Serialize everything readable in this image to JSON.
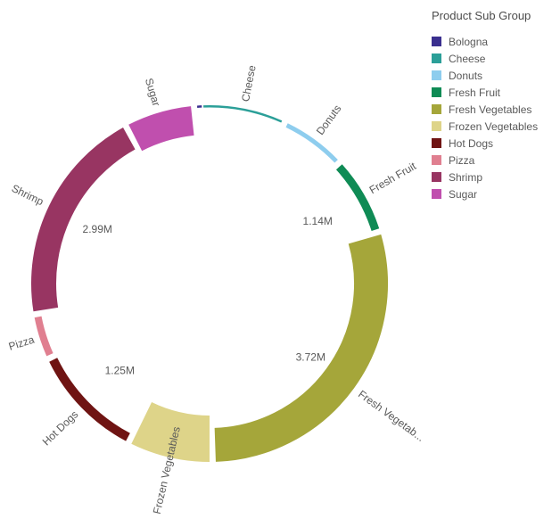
{
  "legend": {
    "title": "Product Sub Group",
    "items": [
      "Bologna",
      "Cheese",
      "Donuts",
      "Fresh Fruit",
      "Fresh Vegetables",
      "Frozen Vegetables",
      "Hot Dogs",
      "Pizza",
      "Shrimp",
      "Sugar"
    ]
  },
  "chart_data": {
    "type": "pie",
    "variant": "radial-donut-variable-thickness",
    "title": "",
    "legend_position": "top-right",
    "start_deg": -2,
    "gap_deg": 2,
    "segments": [
      {
        "name": "Cheese",
        "color": "#2b9f98",
        "angle_deg": 26,
        "thickness": 2.5,
        "name_label": "Cheese",
        "value_label": ""
      },
      {
        "name": "Donuts",
        "color": "#8ecdee",
        "angle_deg": 20,
        "thickness": 5,
        "name_label": "Donuts",
        "value_label": ""
      },
      {
        "name": "Fresh Fruit",
        "color": "#0f8b55",
        "angle_deg": 24,
        "thickness": 9,
        "name_label": "Fresh Fruit",
        "value_label": "1.14M"
      },
      {
        "name": "Fresh Vegetables",
        "color": "#a5a63a",
        "angle_deg": 104,
        "thickness": 38,
        "name_label": "Fresh Vegetab...",
        "value_label": "3.72M"
      },
      {
        "name": "Frozen Vegetables",
        "color": "#ded489",
        "angle_deg": 26,
        "thickness": 52,
        "name_label": "Frozen Vegetables",
        "value_label": ""
      },
      {
        "name": "Hot Dogs",
        "color": "#6f1413",
        "angle_deg": 36,
        "thickness": 10,
        "name_label": "Hot Dogs",
        "value_label": "1.25M"
      },
      {
        "name": "Pizza",
        "color": "#e07f90",
        "angle_deg": 13,
        "thickness": 8,
        "name_label": "Pizza",
        "value_label": ""
      },
      {
        "name": "Shrimp",
        "color": "#983562",
        "angle_deg": 70,
        "thickness": 28,
        "name_label": "Shrimp",
        "value_label": "2.99M"
      },
      {
        "name": "Sugar",
        "color": "#c04fae",
        "angle_deg": 21,
        "thickness": 33,
        "name_label": "Sugar",
        "value_label": ""
      },
      {
        "name": "Bologna",
        "color": "#3a2f8f",
        "angle_deg": 1.5,
        "thickness": 2.5,
        "name_label": "",
        "value_label": ""
      }
    ]
  }
}
